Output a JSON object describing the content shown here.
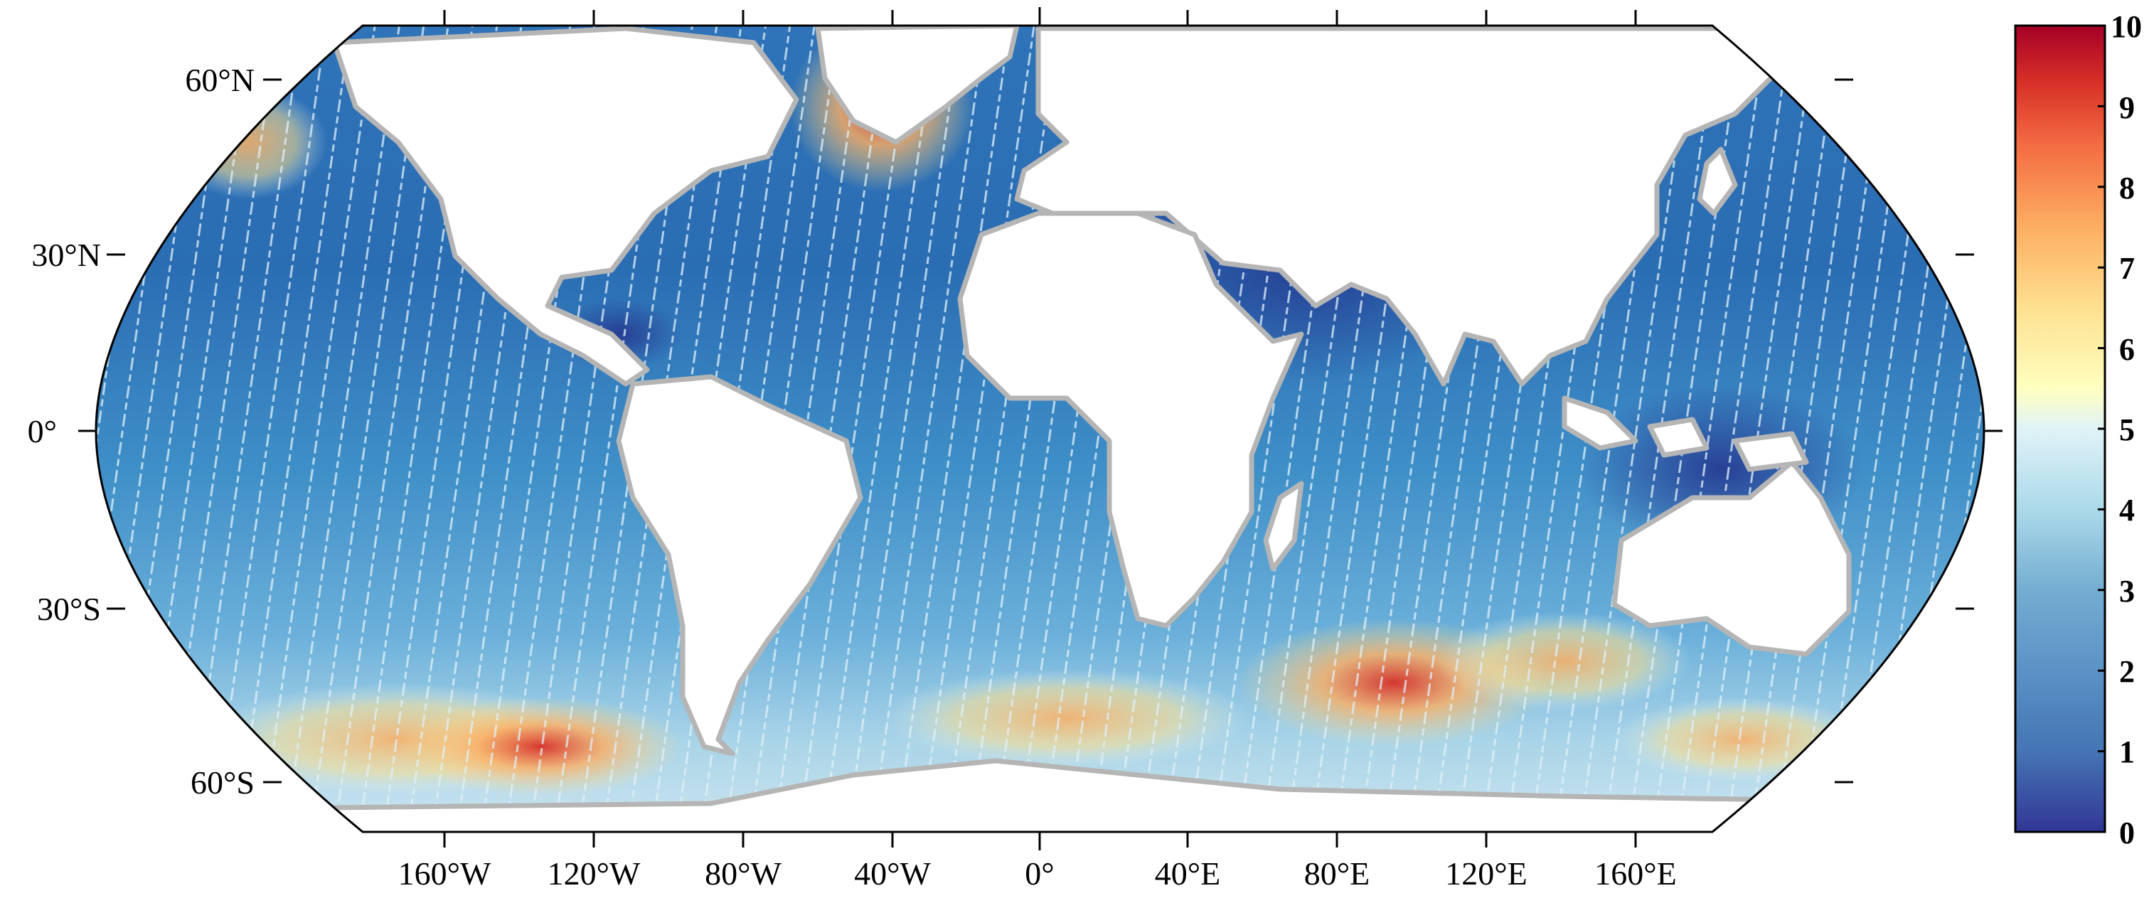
{
  "map": {
    "projection": "Robinson-like world map",
    "graticule": {
      "lat_labels": [
        "60°N",
        "30°N",
        "0°",
        "30°S",
        "60°S"
      ],
      "lon_labels": [
        "160°W",
        "120°W",
        "80°W",
        "40°W",
        "0°",
        "40°E",
        "80°E",
        "120°E",
        "160°E"
      ]
    },
    "colors": {
      "land": "#ffffff",
      "coastline": "#b5b5b5",
      "frame": "#000000",
      "track_gap": "#ffffff"
    }
  },
  "colorbar": {
    "ticks": [
      "0",
      "1",
      "2",
      "3",
      "4",
      "5",
      "6",
      "7",
      "8",
      "9",
      "10"
    ],
    "range": [
      0,
      10
    ],
    "colormap": "blue-white-red (RdYlBu reversed)",
    "stops": [
      "#313695",
      "#4575b4",
      "#74add1",
      "#abd9e9",
      "#e0f3f8",
      "#ffffbf",
      "#fee090",
      "#fdae61",
      "#f46d43",
      "#d73027",
      "#a50026"
    ]
  }
}
